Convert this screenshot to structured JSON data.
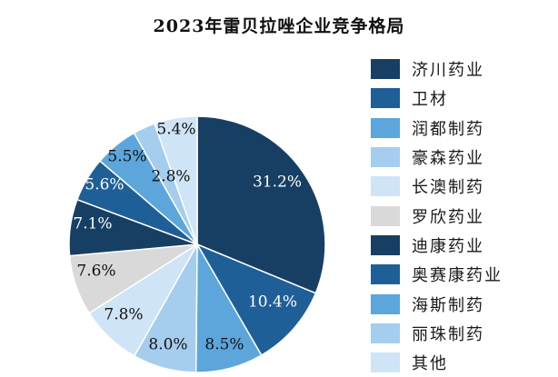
{
  "chart_data": {
    "type": "pie",
    "title": "2023年雷贝拉唑企业竞争格局",
    "value_format": "{v}%",
    "legend_position": "right",
    "slices": [
      {
        "name": "济川药业",
        "value": 31.2,
        "color": "#173f63",
        "label": "31.2%",
        "label_color": "#ffffff"
      },
      {
        "name": "卫材",
        "value": 10.4,
        "color": "#1f5f97",
        "label": "10.4%",
        "label_color": "#ffffff"
      },
      {
        "name": "润都制药",
        "value": 8.5,
        "color": "#5ca6dc",
        "label": "8.5%",
        "label_color": "#111111"
      },
      {
        "name": "豪森药业",
        "value": 8.0,
        "color": "#a5cdee",
        "label": "8.0%",
        "label_color": "#111111"
      },
      {
        "name": "长澳制药",
        "value": 7.8,
        "color": "#cfe4f6",
        "label": "7.8%",
        "label_color": "#111111"
      },
      {
        "name": "罗欣药业",
        "value": 7.6,
        "color": "#d9d9d9",
        "label": "7.6%",
        "label_color": "#111111"
      },
      {
        "name": "迪康药业",
        "value": 7.1,
        "color": "#173f63",
        "label": "7.1%",
        "label_color": "#ffffff"
      },
      {
        "name": "奥赛康药业",
        "value": 5.6,
        "color": "#1f5f97",
        "label": "5.6%",
        "label_color": "#ffffff"
      },
      {
        "name": "海斯制药",
        "value": 5.5,
        "color": "#5ca6dc",
        "label": "5.5%",
        "label_color": "#111111"
      },
      {
        "name": "丽珠制药",
        "value": 2.8,
        "color": "#a5cdee",
        "label": "2.8%",
        "label_color": "#111111"
      },
      {
        "name": "其他",
        "value": 5.4,
        "color": "#cfe4f6",
        "label": "5.4%",
        "label_color": "#111111"
      }
    ]
  }
}
